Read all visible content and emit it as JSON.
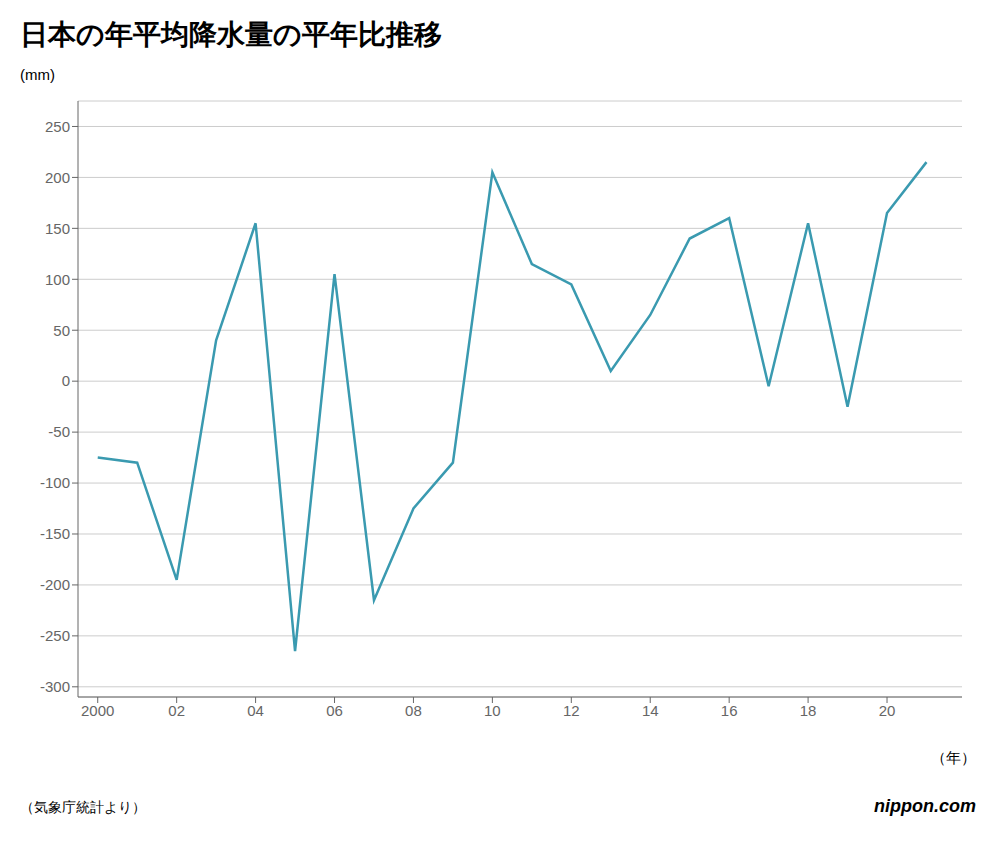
{
  "chart_data": {
    "type": "line",
    "title": "日本の年平均降水量の平年比推移",
    "y_label": "(mm)",
    "x_label": "（年）",
    "annotations": [
      "（気象庁統計より）",
      "nippon.com"
    ],
    "x": [
      2000,
      2001,
      2002,
      2003,
      2004,
      2005,
      2006,
      2007,
      2008,
      2009,
      2010,
      2011,
      2012,
      2013,
      2014,
      2015,
      2016,
      2017,
      2018,
      2019,
      2020,
      2021
    ],
    "values": [
      -75,
      -80,
      -195,
      40,
      155,
      -265,
      105,
      -215,
      -125,
      -80,
      205,
      115,
      95,
      10,
      65,
      140,
      160,
      -5,
      155,
      -25,
      165,
      215
    ],
    "color": "#3a9ab0",
    "xlim": [
      1999.5,
      2021.9
    ],
    "xticks": [
      2000,
      {
        "value": 2002,
        "label": "02"
      },
      {
        "value": 2004,
        "label": "04"
      },
      {
        "value": 2006,
        "label": "06"
      },
      {
        "value": 2008,
        "label": "08"
      },
      {
        "value": 2010,
        "label": "10"
      },
      {
        "value": 2012,
        "label": "12"
      },
      {
        "value": 2014,
        "label": "14"
      },
      {
        "value": 2016,
        "label": "16"
      },
      {
        "value": 2018,
        "label": "18"
      },
      {
        "value": 2020,
        "label": "20"
      }
    ],
    "ylim": [
      -310,
      275
    ],
    "yticks": [
      -300,
      -250,
      -200,
      -150,
      -100,
      -50,
      0,
      50,
      100,
      150,
      200,
      250
    ],
    "grid": true
  }
}
